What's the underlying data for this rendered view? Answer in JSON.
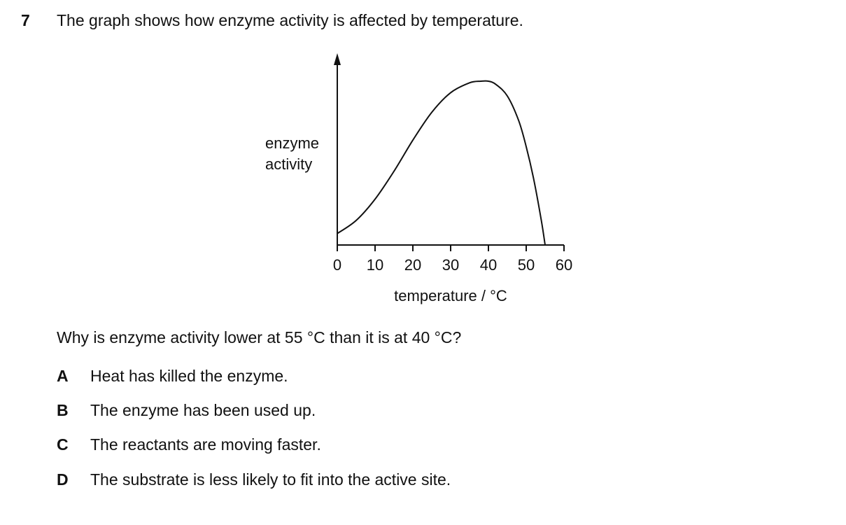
{
  "question": {
    "number": "7",
    "stem": "The graph shows how enzyme activity is affected by temperature.",
    "prompt": "Why is enzyme activity lower at 55 °C than it is at 40 °C?",
    "options": [
      {
        "letter": "A",
        "text": "Heat has killed the enzyme."
      },
      {
        "letter": "B",
        "text": "The enzyme has been used up."
      },
      {
        "letter": "C",
        "text": "The reactants are moving faster."
      },
      {
        "letter": "D",
        "text": "The substrate is less likely to fit into the active site."
      }
    ]
  },
  "chart_data": {
    "type": "line",
    "title": "",
    "xlabel": "temperature / °C",
    "ylabel_lines": [
      "enzyme",
      "activity"
    ],
    "xlim": [
      0,
      60
    ],
    "ylim": [
      0,
      100
    ],
    "x_ticks": [
      0,
      10,
      20,
      30,
      40,
      50,
      60
    ],
    "x_tick_labels": [
      "0",
      "10",
      "20",
      "30",
      "40",
      "50",
      "60"
    ],
    "grid": false,
    "legend": "none",
    "series": [
      {
        "x": [
          0,
          5,
          10,
          15,
          20,
          25,
          30,
          35,
          38,
          40,
          42,
          45,
          48,
          50,
          52,
          54,
          55
        ],
        "y": [
          7,
          15,
          28,
          45,
          64,
          81,
          93,
          99,
          100,
          100,
          98,
          91,
          76,
          60,
          40,
          15,
          0
        ]
      }
    ]
  }
}
